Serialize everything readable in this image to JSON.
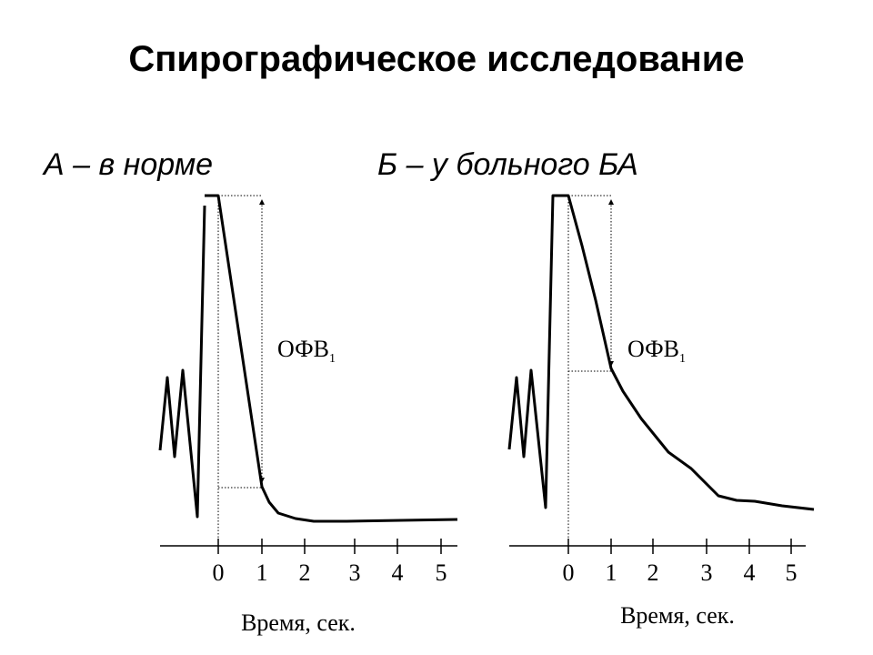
{
  "header": {
    "title": "Спирографическое исследование"
  },
  "panels": [
    {
      "subtitle": "А – в норме",
      "marker": {
        "label": "ОФВ",
        "sub": "1"
      },
      "ticks": [
        0,
        1,
        2,
        3,
        4,
        5
      ],
      "axis_label": "Время, сек."
    },
    {
      "subtitle": "Б – у больного БА",
      "marker": {
        "label": "ОФВ",
        "sub": "1"
      },
      "ticks": [
        0,
        1,
        2,
        3,
        4,
        5
      ],
      "axis_label": "Время, сек."
    }
  ]
}
